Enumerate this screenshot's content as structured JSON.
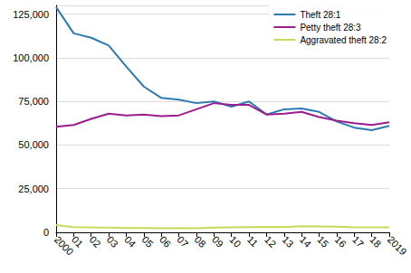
{
  "chart_data": {
    "type": "line",
    "categories": [
      "2000",
      "01",
      "02",
      "03",
      "04",
      "05",
      "06",
      "07",
      "08",
      "09",
      "10",
      "11",
      "12",
      "13",
      "14",
      "15",
      "16",
      "17",
      "18",
      "2019"
    ],
    "series": [
      {
        "name": "Theft 28:1",
        "color": "#2b7bb3",
        "values": [
          129000,
          114000,
          111500,
          107000,
          95000,
          83500,
          77000,
          76000,
          74000,
          75000,
          72000,
          75000,
          67500,
          70500,
          71000,
          69000,
          63500,
          60000,
          58500,
          61000
        ]
      },
      {
        "name": "Petty theft 28:3",
        "color": "#9b1d8e",
        "values": [
          60500,
          61500,
          65000,
          68000,
          67000,
          67500,
          66500,
          67000,
          70500,
          74000,
          73000,
          73000,
          67500,
          68000,
          69000,
          66000,
          64000,
          62500,
          61500,
          63000
        ]
      },
      {
        "name": "Aggravated theft 28:2",
        "color": "#c3dd5a",
        "values": [
          4200,
          3000,
          2800,
          2700,
          2500,
          2400,
          2300,
          2400,
          2300,
          2700,
          2900,
          3000,
          3100,
          3000,
          3500,
          3400,
          3200,
          2800,
          2900,
          2800
        ]
      }
    ],
    "ylim": [
      0,
      130000
    ],
    "yticks": [
      {
        "value": 0,
        "label": "0"
      },
      {
        "value": 25000,
        "label": "25,000"
      },
      {
        "value": 50000,
        "label": "50,000"
      },
      {
        "value": 75000,
        "label": "75,000"
      },
      {
        "value": 100000,
        "label": "100,000"
      },
      {
        "value": 125000,
        "label": "125,000"
      }
    ],
    "grid": true,
    "legend": "top-right"
  }
}
